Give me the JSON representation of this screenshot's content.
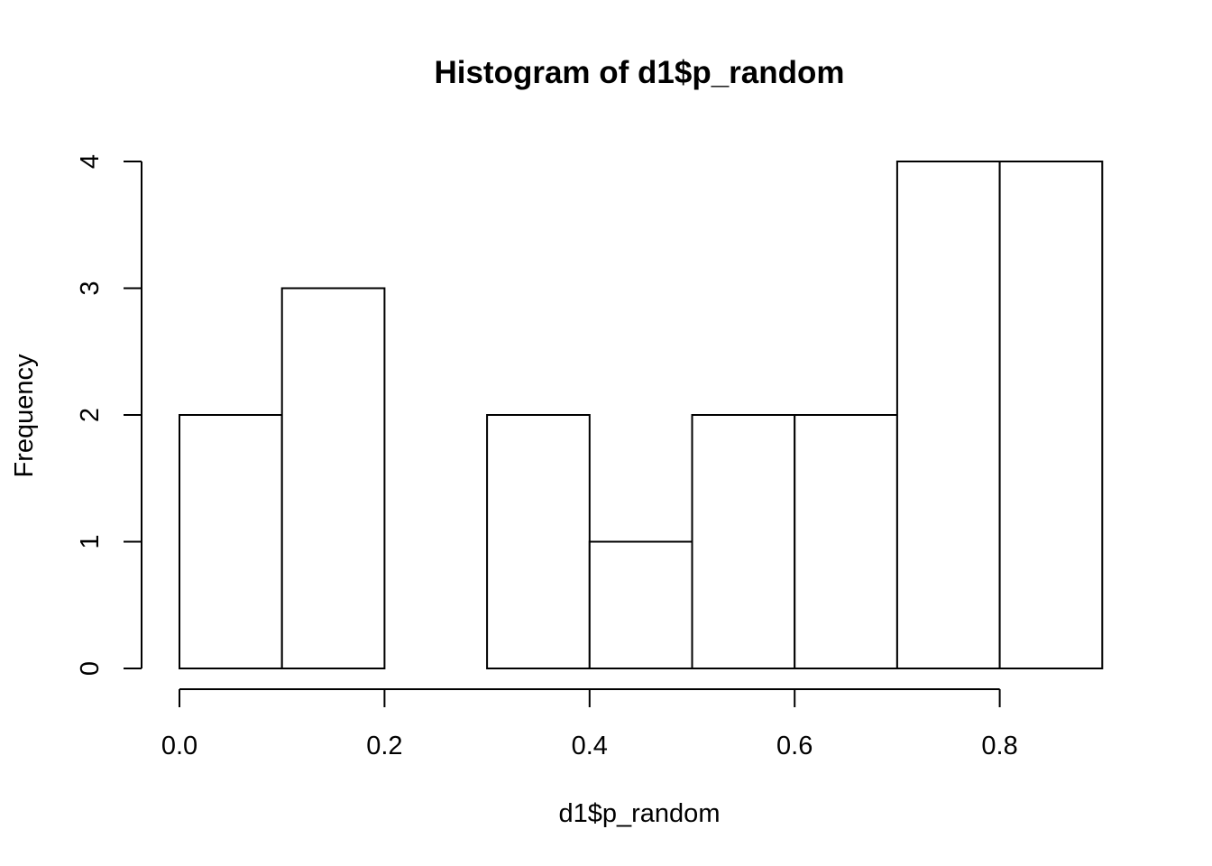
{
  "chart_data": {
    "type": "bar",
    "subtype": "histogram",
    "title": "Histogram of d1$p_random",
    "xlabel": "d1$p_random",
    "ylabel": "Frequency",
    "bins": [
      {
        "start": 0.0,
        "end": 0.1,
        "count": 2
      },
      {
        "start": 0.1,
        "end": 0.2,
        "count": 3
      },
      {
        "start": 0.2,
        "end": 0.3,
        "count": 0
      },
      {
        "start": 0.3,
        "end": 0.4,
        "count": 2
      },
      {
        "start": 0.4,
        "end": 0.5,
        "count": 1
      },
      {
        "start": 0.5,
        "end": 0.6,
        "count": 2
      },
      {
        "start": 0.6,
        "end": 0.7,
        "count": 2
      },
      {
        "start": 0.7,
        "end": 0.8,
        "count": 4
      },
      {
        "start": 0.8,
        "end": 0.9,
        "count": 4
      }
    ],
    "x_ticks": [
      0.0,
      0.2,
      0.4,
      0.6,
      0.8
    ],
    "x_tick_labels": [
      "0.0",
      "0.2",
      "0.4",
      "0.6",
      "0.8"
    ],
    "y_ticks": [
      0,
      1,
      2,
      3,
      4
    ],
    "y_tick_labels": [
      "0",
      "1",
      "2",
      "3",
      "4"
    ],
    "xlim": [
      0.0,
      0.9
    ],
    "ylim": [
      0,
      4
    ],
    "grid": false,
    "legend": "none",
    "colors": {
      "bar_fill": "#ffffff",
      "bar_stroke": "#000000",
      "axis": "#000000",
      "text": "#000000"
    }
  }
}
